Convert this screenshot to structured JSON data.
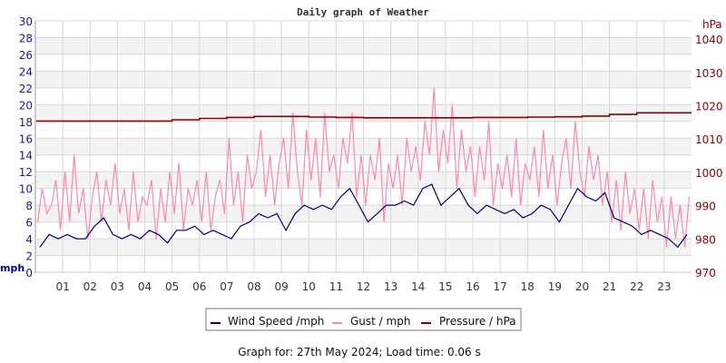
{
  "chart_data": {
    "type": "line",
    "title": "Daily graph of Weather",
    "footer": "Graph for: 27th May 2024; Load time: 0.06 s",
    "left_axis": {
      "label": "mph",
      "range": [
        0,
        30
      ],
      "ticks": [
        0,
        2,
        4,
        6,
        8,
        10,
        12,
        14,
        16,
        18,
        20,
        22,
        24,
        26,
        28,
        30
      ],
      "color": "#1a1a8c"
    },
    "right_axis": {
      "label": "hPa",
      "range": [
        970,
        1045.5
      ],
      "ticks": [
        970,
        980,
        990,
        1000,
        1010,
        1020,
        1030,
        1040
      ],
      "color": "#8b0000"
    },
    "x_axis": {
      "range_hours": [
        0,
        24
      ],
      "tick_labels": [
        "01",
        "02",
        "03",
        "04",
        "05",
        "06",
        "07",
        "08",
        "09",
        "10",
        "11",
        "12",
        "13",
        "14",
        "15",
        "16",
        "17",
        "18",
        "19",
        "20",
        "21",
        "22",
        "23"
      ]
    },
    "grid": true,
    "legend_placement": "bottom",
    "series": [
      {
        "name": "Wind Speed /mph",
        "color": "#000080",
        "axis": "left",
        "start": "00:00",
        "step_minutes": 20,
        "values": [
          3,
          4.5,
          4,
          4.5,
          4,
          4,
          5.5,
          6.5,
          4.5,
          4,
          4.5,
          4,
          5,
          4.5,
          3.5,
          5,
          5,
          5.5,
          4.5,
          5,
          4.5,
          4,
          5.5,
          6,
          7,
          6.5,
          7,
          5,
          7,
          8,
          7.5,
          8,
          7.5,
          9,
          10,
          8,
          6,
          7,
          8,
          8,
          8.5,
          8,
          10,
          10.5,
          8,
          9,
          10,
          8,
          7,
          8,
          7.5,
          7,
          7.5,
          6.5,
          7,
          8,
          7.5,
          6,
          8,
          10,
          9,
          8.5,
          9.5,
          6.5,
          6,
          5.5,
          4.5,
          5,
          4.5,
          4,
          3,
          4.5
        ]
      },
      {
        "name": "Gust / mph",
        "color": "#ff88aa",
        "axis": "left",
        "start": "00:00",
        "step_minutes": 10,
        "values": [
          6,
          10,
          7,
          8,
          11,
          5,
          12,
          6,
          14,
          7,
          10,
          4,
          9,
          12,
          6,
          11,
          8,
          13,
          7,
          10,
          5,
          12,
          6,
          9,
          8,
          11,
          4,
          10,
          6,
          12,
          7,
          13,
          5,
          10,
          8,
          11,
          6,
          12,
          5,
          9,
          11,
          7,
          16,
          8,
          12,
          6,
          14,
          10,
          12,
          17,
          9,
          14,
          8,
          13,
          16,
          10,
          19,
          12,
          8,
          17,
          11,
          16,
          9,
          19,
          12,
          14,
          10,
          16,
          13,
          19,
          9,
          14,
          8,
          14,
          11,
          16,
          6,
          13,
          10,
          14,
          8,
          16,
          12,
          15,
          11,
          18,
          14,
          22,
          12,
          17,
          13,
          20,
          10,
          17,
          12,
          15,
          9,
          15,
          11,
          18,
          8,
          13,
          10,
          14,
          9,
          16,
          8,
          13,
          11,
          15,
          9,
          17,
          10,
          14,
          8,
          13,
          16,
          10,
          18,
          12,
          9,
          15,
          11,
          14,
          8,
          12,
          6,
          11,
          5,
          12,
          7,
          10,
          5,
          10,
          4,
          11,
          6,
          9,
          3,
          9,
          4,
          8,
          3,
          9
        ]
      },
      {
        "name": "Pressure / hPa",
        "color": "#8b0000",
        "axis": "right",
        "start": "00:00",
        "step_minutes": 60,
        "values": [
          1015.4,
          1015.4,
          1015.4,
          1015.4,
          1015.4,
          1015.8,
          1016.2,
          1016.5,
          1016.8,
          1016.8,
          1016.6,
          1016.5,
          1016.4,
          1016.4,
          1016.4,
          1016.4,
          1016.5,
          1016.5,
          1016.6,
          1016.7,
          1016.9,
          1017.4,
          1017.9,
          1017.9
        ]
      }
    ]
  }
}
